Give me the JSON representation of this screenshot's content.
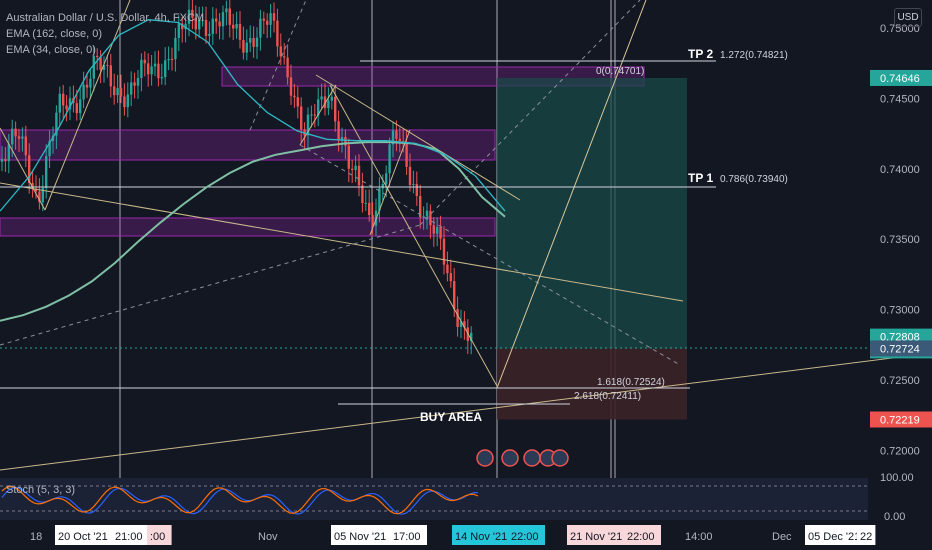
{
  "legend": {
    "symbol": "Australian Dollar / U.S. Dollar, 4h, FXCM",
    "ema_long": "EMA (162, close, 0)",
    "ema_short": "EMA (34, close, 0)"
  },
  "currency_button": "USD",
  "stoch_label": "Stoch (5, 3, 3)",
  "colors": {
    "background": "#131722",
    "up": "#26a69a",
    "down": "#ef5350",
    "ema_long": "#7fbfa4",
    "ema_short": "#2eb8c4",
    "zone": "#9c27b0",
    "target_zone": "#1a4a48",
    "stop_zone": "#3b2228"
  },
  "chart_data": {
    "type": "candlestick",
    "title": "Australian Dollar / U.S. Dollar, 4h, FXCM",
    "y_ticks": [
      "0.75000",
      "0.74500",
      "0.74000",
      "0.73500",
      "0.73000",
      "0.72500",
      "0.72000"
    ],
    "y_tick_values": [
      0.75,
      0.745,
      0.74,
      0.735,
      0.73,
      0.725,
      0.72
    ],
    "ylim": [
      0.7186,
      0.752
    ],
    "price_badges": [
      {
        "label": "0.74646",
        "value": 0.74646,
        "color": "#26a69a"
      },
      {
        "label": "0.72808",
        "value": 0.72808,
        "color": "#26a69a"
      },
      {
        "label": "02:20:07",
        "value": 0.7271,
        "color": "#26a69a"
      },
      {
        "label": "0.72724",
        "value": 0.72724,
        "color": "#3a5a78"
      },
      {
        "label": "0.72219",
        "value": 0.72219,
        "color": "#ef5350"
      }
    ],
    "x_ticks": [
      "18",
      "20 Oct '21",
      "21:00",
      ":00",
      "Nov",
      "05 Nov '21",
      "17:00",
      "14 Nov '21",
      "22:00",
      "21 Nov '21",
      "22:00",
      "14:00",
      "Dec",
      "05 Dec '21",
      "22"
    ],
    "annotations": [
      {
        "label": "TP 2",
        "detail": "1.272(0.74821)",
        "value": 0.74821
      },
      {
        "label": "TP 1",
        "detail": "0.786(0.73940)",
        "value": 0.7394
      },
      {
        "label": "",
        "detail": "0(0.74701)",
        "value": 0.74701
      },
      {
        "label": "",
        "detail": "1.618(0.72524)",
        "value": 0.72524
      },
      {
        "label": "",
        "detail": "2.618(0.72411)",
        "value": 0.72411
      },
      {
        "label": "BUY AREA",
        "detail": "",
        "value": 0.7237
      }
    ],
    "series": [
      {
        "name": "EMA (162, close, 0)",
        "values": [
          0.7292,
          0.7296,
          0.7302,
          0.731,
          0.732,
          0.7333,
          0.7348,
          0.7362,
          0.7375,
          0.7387,
          0.7397,
          0.7405,
          0.741,
          0.7413,
          0.7416,
          0.7418,
          0.7419,
          0.7419,
          0.7418,
          0.7414,
          0.74,
          0.738,
          0.7366
        ]
      },
      {
        "name": "EMA (34, close, 0)",
        "values": [
          0.737,
          0.7395,
          0.743,
          0.747,
          0.7495,
          0.7506,
          0.7504,
          0.749,
          0.746,
          0.744,
          0.7427,
          0.7421,
          0.742,
          0.742,
          0.7418,
          0.741,
          0.7395,
          0.737
        ]
      }
    ],
    "stoch_ticks": [
      "100.00",
      "0.00"
    ],
    "grid": false
  }
}
